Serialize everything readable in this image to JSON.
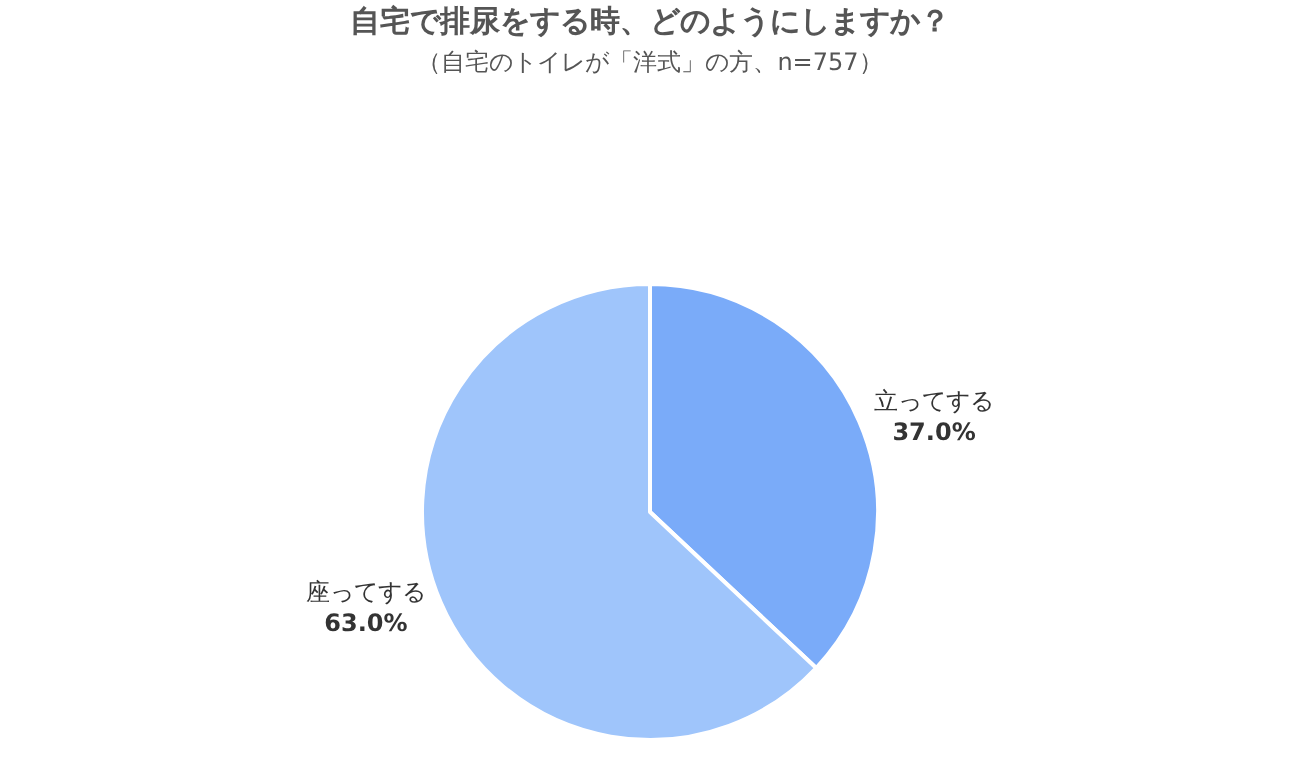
{
  "chart_data": {
    "type": "pie",
    "title": "自宅で排尿をする時、どのようにしますか？",
    "subtitle": "（自宅のトイレが「洋式」の方、n=757）",
    "categories": [
      "立ってする",
      "座ってする"
    ],
    "values": [
      37.0,
      63.0
    ],
    "colors": [
      "#7aabf9",
      "#9fc5fb"
    ],
    "value_labels": [
      "37.0%",
      "63.0%"
    ],
    "legend": false
  }
}
